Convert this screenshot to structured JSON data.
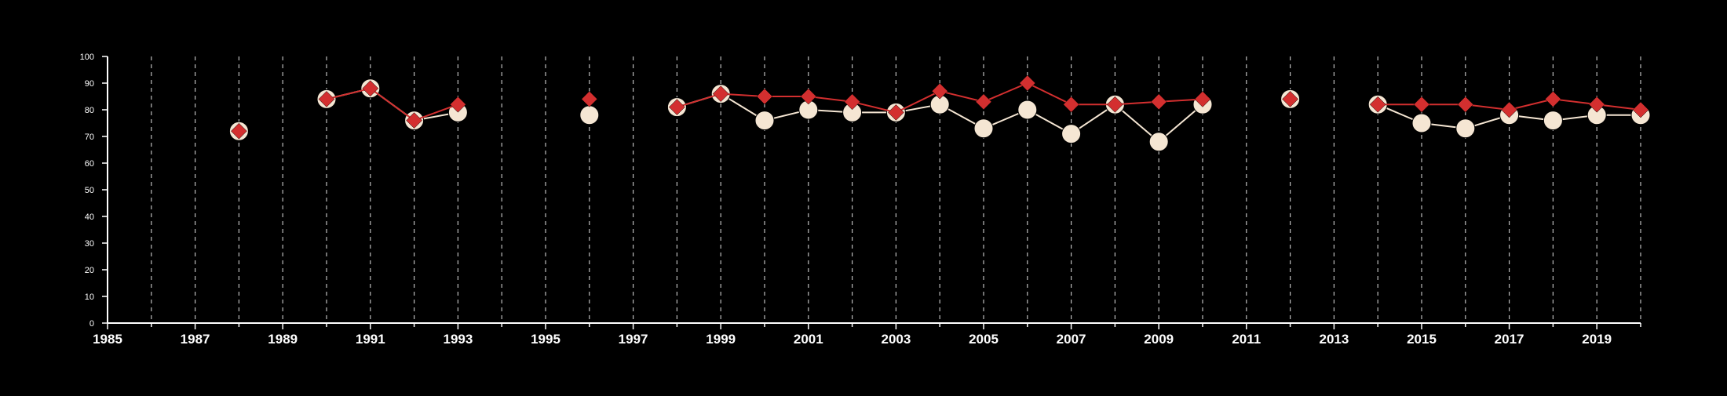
{
  "chart_data": {
    "type": "line",
    "title": "",
    "xlabel": "",
    "ylabel": "",
    "xlim": [
      1985,
      2020
    ],
    "ylim": [
      0,
      100
    ],
    "x_ticks": [
      1985,
      1987,
      1989,
      1991,
      1993,
      1995,
      1997,
      1999,
      2001,
      2003,
      2005,
      2007,
      2009,
      2011,
      2013,
      2015,
      2017,
      2019
    ],
    "y_ticks": [
      0,
      10,
      20,
      30,
      40,
      50,
      60,
      70,
      80,
      90,
      100
    ],
    "vertical_grid": "dashed, every year",
    "horizontal_grid": false,
    "legend": "none",
    "background_color": "#000000",
    "axis_color": "#ffffff",
    "series": [
      {
        "color": "#f5e6d3",
        "marker": "circle",
        "points": [
          [
            1988,
            72
          ],
          [
            1990,
            84
          ],
          [
            1991,
            88
          ],
          [
            1992,
            76
          ],
          [
            1993,
            79
          ],
          [
            1996,
            78
          ],
          [
            1998,
            81
          ],
          [
            1999,
            86
          ],
          [
            2000,
            76
          ],
          [
            2001,
            80
          ],
          [
            2002,
            79
          ],
          [
            2003,
            79
          ],
          [
            2004,
            82
          ],
          [
            2005,
            73
          ],
          [
            2006,
            80
          ],
          [
            2007,
            71
          ],
          [
            2008,
            82
          ],
          [
            2009,
            68
          ],
          [
            2010,
            82
          ],
          [
            2012,
            84
          ],
          [
            2014,
            82
          ],
          [
            2015,
            75
          ],
          [
            2016,
            73
          ],
          [
            2017,
            78
          ],
          [
            2018,
            76
          ],
          [
            2019,
            78
          ],
          [
            2020,
            78
          ]
        ]
      },
      {
        "color": "#d32f2f",
        "marker": "diamond",
        "points": [
          [
            1988,
            72
          ],
          [
            1990,
            84
          ],
          [
            1991,
            88
          ],
          [
            1992,
            76
          ],
          [
            1993,
            82
          ],
          [
            1996,
            84
          ],
          [
            1998,
            81
          ],
          [
            1999,
            86
          ],
          [
            2000,
            85
          ],
          [
            2001,
            85
          ],
          [
            2002,
            83
          ],
          [
            2003,
            79
          ],
          [
            2004,
            87
          ],
          [
            2005,
            83
          ],
          [
            2006,
            90
          ],
          [
            2007,
            82
          ],
          [
            2008,
            82
          ],
          [
            2009,
            83
          ],
          [
            2010,
            84
          ],
          [
            2012,
            84
          ],
          [
            2014,
            82
          ],
          [
            2015,
            82
          ],
          [
            2016,
            82
          ],
          [
            2017,
            80
          ],
          [
            2018,
            84
          ],
          [
            2019,
            82
          ],
          [
            2020,
            80
          ]
        ]
      }
    ]
  }
}
